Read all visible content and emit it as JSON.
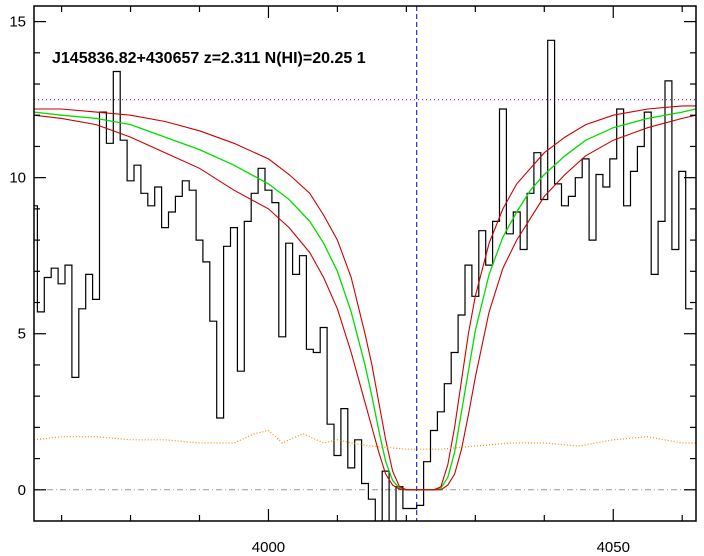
{
  "chart_data": {
    "type": "line",
    "title": "J145836.82+430657 z=2.311 N(HI)=20.25 1",
    "xlabel": "",
    "ylabel": "",
    "xlim": [
      3966,
      4062
    ],
    "ylim": [
      -1,
      15.5
    ],
    "x_ticks": [
      4000,
      4050
    ],
    "y_ticks": [
      0,
      5,
      10,
      15
    ],
    "grid": false,
    "colors": {
      "flux": "#000000",
      "model": "#00dd00",
      "model_bounds": "#cc0000",
      "continuum": "#9933cc",
      "error": "#ff8800",
      "zero": "#999999",
      "center": "#0000cc"
    },
    "center_x": 4021.5,
    "zero_level": 0,
    "continuum_level": 12.5,
    "series": [
      {
        "role": "flux",
        "x": [
          3966.0,
          3967.0,
          3968.0,
          3969.0,
          3970.0,
          3971.0,
          3972.0,
          3973.0,
          3974.0,
          3975.0,
          3976.0,
          3977.0,
          3978.0,
          3979.0,
          3980.0,
          3981.0,
          3982.0,
          3983.0,
          3984.0,
          3985.0,
          3986.0,
          3987.0,
          3988.0,
          3989.0,
          3990.0,
          3991.0,
          3992.0,
          3993.0,
          3994.0,
          3995.0,
          3996.0,
          3997.0,
          3998.0,
          3999.0,
          4000.0,
          4001.0,
          4002.0,
          4003.0,
          4004.0,
          4005.0,
          4006.0,
          4007.0,
          4008.0,
          4009.0,
          4010.0,
          4011.0,
          4012.0,
          4013.0,
          4014.0,
          4015.0,
          4016.0,
          4017.0,
          4018.0,
          4019.0,
          4020.0,
          4021.0,
          4022.0,
          4023.0,
          4024.0,
          4025.0,
          4026.0,
          4027.0,
          4028.0,
          4029.0,
          4030.0,
          4031.0,
          4032.0,
          4033.0,
          4034.0,
          4035.0,
          4036.0,
          4037.0,
          4038.0,
          4039.0,
          4040.0,
          4041.0,
          4042.0,
          4043.0,
          4044.0,
          4045.0,
          4046.0,
          4047.0,
          4048.0,
          4049.0,
          4050.0,
          4051.0,
          4052.0,
          4053.0,
          4054.0,
          4055.0,
          4056.0,
          4057.0,
          4058.0,
          4059.0,
          4060.0,
          4061.0
        ],
        "y": [
          9.1,
          5.7,
          6.8,
          7.1,
          6.6,
          7.2,
          3.6,
          5.8,
          6.9,
          6.1,
          12.1,
          11.1,
          13.4,
          11.2,
          9.9,
          10.4,
          9.5,
          9.1,
          9.7,
          8.4,
          8.9,
          9.4,
          9.9,
          9.6,
          8.0,
          7.3,
          5.4,
          2.3,
          7.8,
          8.4,
          3.8,
          8.6,
          9.5,
          10.3,
          9.6,
          9.2,
          4.9,
          7.9,
          6.9,
          7.5,
          4.5,
          4.4,
          5.2,
          2.1,
          1.1,
          2.6,
          0.7,
          1.6,
          0.2,
          -0.3,
          -1.1,
          0.6,
          -1.1,
          0.1,
          -0.6,
          -0.6,
          -0.5,
          0.9,
          1.9,
          2.5,
          3.4,
          4.4,
          5.6,
          7.2,
          6.2,
          8.3,
          7.2,
          8.6,
          12.2,
          8.2,
          8.9,
          7.7,
          9.5,
          10.8,
          9.3,
          14.4,
          9.8,
          9.1,
          9.4,
          10.0,
          10.6,
          8.0,
          10.1,
          9.7,
          10.6,
          12.2,
          9.1,
          10.2,
          11.0,
          12.1,
          6.9,
          8.6,
          13.1,
          7.7,
          10.2,
          5.8
        ]
      },
      {
        "role": "model",
        "x": [
          3966,
          3970,
          3975,
          3980,
          3985,
          3990,
          3995,
          4000,
          4003,
          4006,
          4008,
          4010,
          4012,
          4014,
          4015,
          4016,
          4017,
          4018,
          4019,
          4020,
          4022,
          4024,
          4025,
          4026,
          4027,
          4028,
          4029,
          4030,
          4032,
          4034,
          4036,
          4038,
          4040,
          4043,
          4046,
          4050,
          4055,
          4060,
          4062
        ],
        "y": [
          12.1,
          12.0,
          11.9,
          11.7,
          11.3,
          10.9,
          10.4,
          9.8,
          9.3,
          8.6,
          7.9,
          7.0,
          5.7,
          4.0,
          3.0,
          1.9,
          0.9,
          0.3,
          0.05,
          0.0,
          0.0,
          0.0,
          0.05,
          0.4,
          1.2,
          2.5,
          3.8,
          5.1,
          6.9,
          8.1,
          8.9,
          9.6,
          10.1,
          10.7,
          11.2,
          11.6,
          11.9,
          12.1,
          12.2
        ]
      },
      {
        "role": "model_upper",
        "x": [
          3966,
          3970,
          3975,
          3980,
          3985,
          3990,
          3995,
          4000,
          4003,
          4006,
          4008,
          4010,
          4012,
          4014,
          4015,
          4016,
          4017,
          4018,
          4019,
          4020,
          4022,
          4024,
          4025,
          4026,
          4027,
          4028,
          4029,
          4030,
          4032,
          4034,
          4036,
          4038,
          4040,
          4043,
          4046,
          4050,
          4055,
          4060,
          4062
        ],
        "y": [
          12.2,
          12.2,
          12.1,
          12.0,
          11.8,
          11.5,
          11.1,
          10.6,
          10.1,
          9.5,
          8.8,
          8.0,
          6.8,
          5.0,
          4.0,
          2.8,
          1.6,
          0.6,
          0.1,
          0.0,
          0.0,
          0.0,
          0.1,
          0.8,
          2.0,
          3.5,
          5.0,
          6.2,
          7.9,
          9.0,
          9.8,
          10.3,
          10.8,
          11.3,
          11.7,
          12.0,
          12.2,
          12.3,
          12.3
        ]
      },
      {
        "role": "model_lower",
        "x": [
          3966,
          3970,
          3975,
          3980,
          3985,
          3990,
          3995,
          4000,
          4003,
          4006,
          4008,
          4010,
          4012,
          4014,
          4015,
          4016,
          4017,
          4018,
          4019,
          4020,
          4022,
          4024,
          4025,
          4026,
          4027,
          4028,
          4029,
          4030,
          4032,
          4034,
          4036,
          4038,
          4040,
          4043,
          4046,
          4050,
          4055,
          4060,
          4062
        ],
        "y": [
          12.0,
          11.9,
          11.7,
          11.3,
          10.8,
          10.3,
          9.6,
          9.0,
          8.4,
          7.6,
          6.8,
          5.8,
          4.4,
          2.8,
          2.0,
          1.2,
          0.5,
          0.15,
          0.02,
          0.0,
          0.0,
          0.0,
          0.0,
          0.15,
          0.5,
          1.3,
          2.4,
          3.6,
          5.7,
          7.1,
          8.0,
          8.7,
          9.4,
          10.1,
          10.7,
          11.2,
          11.6,
          11.9,
          12.0
        ]
      },
      {
        "role": "error",
        "x": [
          3966,
          3970,
          3975,
          3980,
          3985,
          3990,
          3995,
          3998,
          4000,
          4002,
          4005,
          4008,
          4010,
          4012,
          4015,
          4020,
          4025,
          4030,
          4035,
          4040,
          4045,
          4050,
          4055,
          4060,
          4062
        ],
        "y": [
          1.6,
          1.7,
          1.7,
          1.6,
          1.6,
          1.5,
          1.5,
          1.8,
          1.9,
          1.5,
          1.8,
          1.5,
          1.6,
          1.5,
          1.4,
          1.3,
          1.3,
          1.4,
          1.5,
          1.5,
          1.4,
          1.6,
          1.7,
          1.5,
          1.5
        ]
      }
    ]
  }
}
